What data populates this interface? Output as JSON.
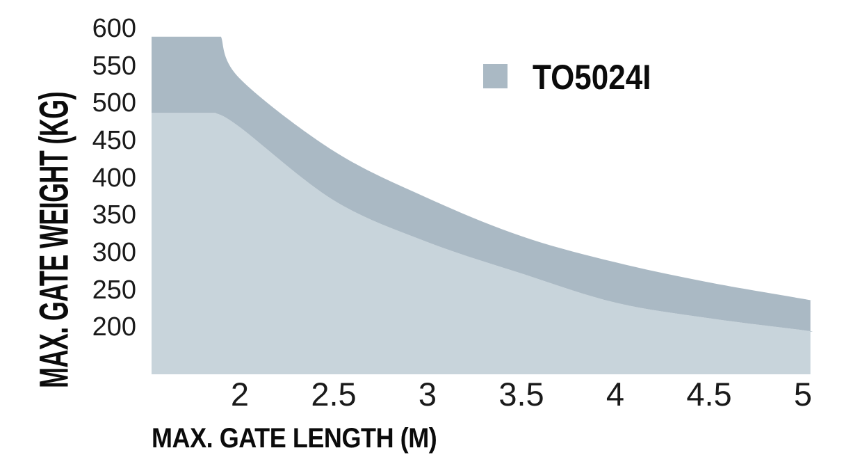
{
  "chart_data": {
    "type": "area",
    "title": "",
    "xlabel": "MAX. GATE LENGTH (M)",
    "ylabel": "MAX. GATE WEIGHT (KG)",
    "x_ticks": [
      2,
      2.5,
      3,
      3.5,
      4,
      4.5,
      5
    ],
    "x_tick_labels": [
      "2",
      "2.5",
      "3",
      "3.5",
      "4",
      "4.5",
      "5"
    ],
    "y_ticks": [
      600,
      550,
      500,
      450,
      400,
      350,
      300,
      250,
      200
    ],
    "y_tick_labels": [
      "600",
      "550",
      "500",
      "450",
      "400",
      "350",
      "300",
      "250",
      "200"
    ],
    "xlim": [
      1.53,
      5.04
    ],
    "ylim": [
      137,
      600
    ],
    "grid": false,
    "legend_position": "upper right",
    "series": [
      {
        "name": "TO5024I",
        "band_color": "#aab9c4",
        "shadow_color": "#c8d4db",
        "upper_curve": [
          [
            1.53,
            589
          ],
          [
            1.9,
            589
          ],
          [
            2.0,
            533
          ],
          [
            2.5,
            436
          ],
          [
            3.0,
            373
          ],
          [
            3.5,
            322
          ],
          [
            4.0,
            287
          ],
          [
            4.5,
            260
          ],
          [
            5.0,
            238
          ],
          [
            5.04,
            236
          ]
        ],
        "lower_curve": [
          [
            1.53,
            487
          ],
          [
            1.87,
            487
          ],
          [
            2.0,
            468
          ],
          [
            2.5,
            370
          ],
          [
            3.0,
            314
          ],
          [
            3.5,
            272
          ],
          [
            4.0,
            233
          ],
          [
            4.5,
            212
          ],
          [
            5.0,
            196
          ],
          [
            5.04,
            194
          ]
        ]
      }
    ]
  }
}
